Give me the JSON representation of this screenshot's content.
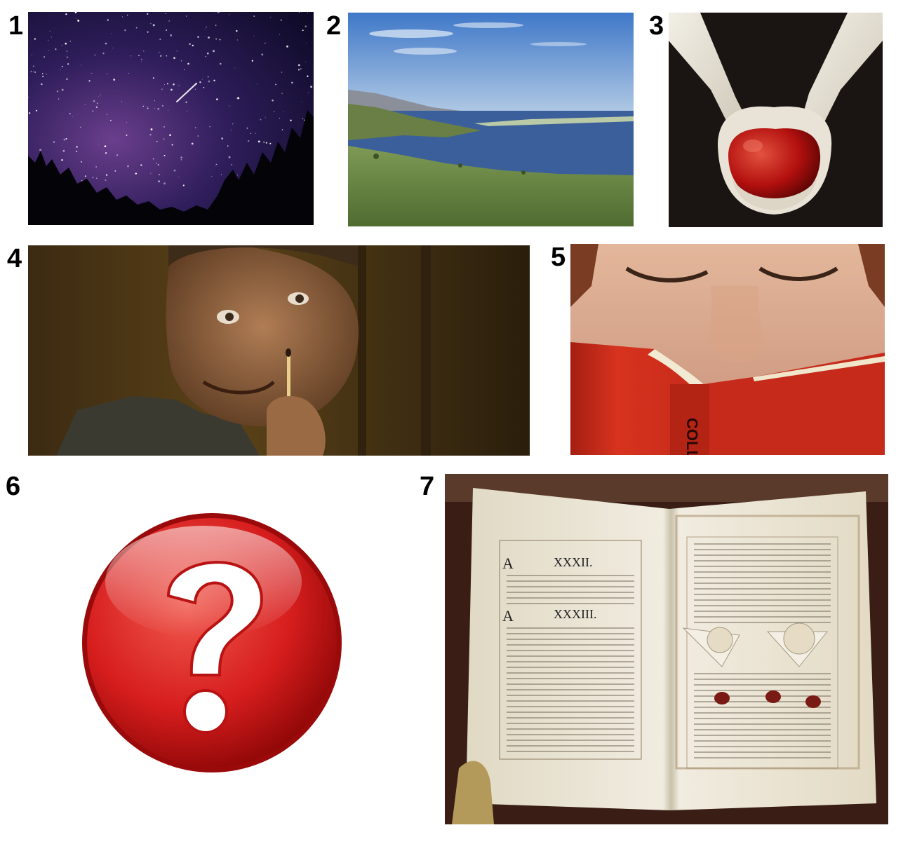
{
  "panels": [
    {
      "label": "1"
    },
    {
      "label": "2"
    },
    {
      "label": "3"
    },
    {
      "label": "4"
    },
    {
      "label": "5",
      "book_spine_text": "COLL"
    },
    {
      "label": "6"
    },
    {
      "label": "7",
      "heading_top": "XXXII.",
      "heading_bottom": "XXXIII.",
      "initial_top": "A",
      "initial_bottom": "A"
    }
  ],
  "colors": {
    "night_sky": "#1a0f3a",
    "lake": "#3a5f9a",
    "apple": "#b3100e",
    "book_red": "#c62a1a",
    "question_red": "#d61d1d",
    "parchment": "#ece6d4",
    "wax_seal": "#7a1a14"
  }
}
